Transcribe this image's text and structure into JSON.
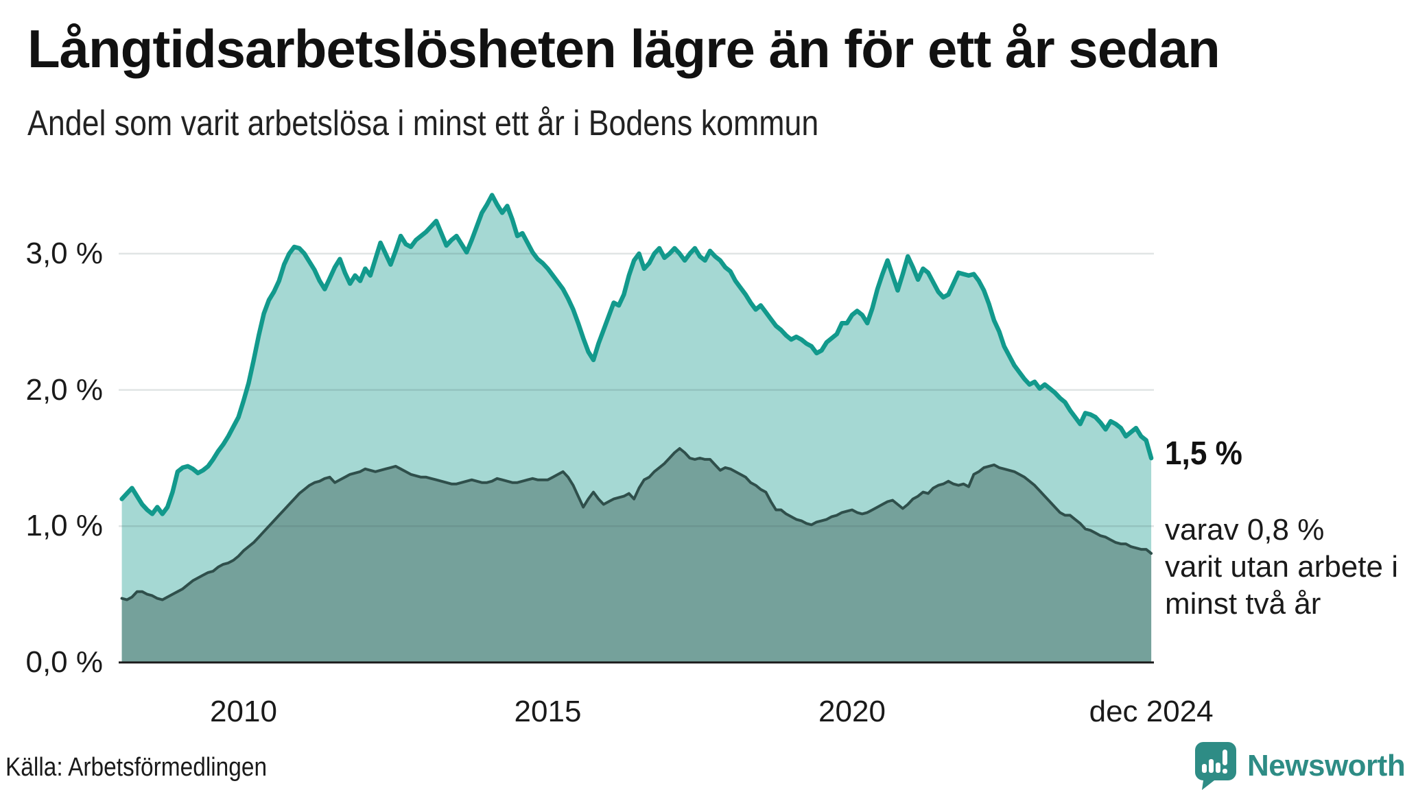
{
  "title": "Långtidsarbetslösheten lägre än för ett år sedan",
  "subtitle": "Andel som varit arbetslösa i minst ett år i Bodens kommun",
  "source": "Källa: Arbetsförmedlingen",
  "brand": {
    "name": "Newsworthy",
    "color": "#2E8C85"
  },
  "annotations": {
    "latest_total": "1,5 %",
    "sub_line1": "varav 0,8 %",
    "sub_line2": "varit utan arbete i",
    "sub_line3": "minst två år"
  },
  "colors": {
    "accent_line": "#12998C",
    "accent_fill": "rgba(18,153,140,0.38)",
    "dark_fill": "#75A19B",
    "dark_line": "#2F4F4B",
    "gridline": "rgba(60,90,90,0.16)",
    "axis": "#1a1a1a",
    "text": "#1a1a1a"
  },
  "chart_data": {
    "type": "area",
    "title": "Långtidsarbetslösheten lägre än för ett år sedan",
    "subtitle": "Andel som varit arbetslösa i minst ett år i Bodens kommun",
    "unit": "percent",
    "x_start_year": 2008.0,
    "x_step_years": 0.0833333,
    "xlim": [
      2008.0,
      2024.917
    ],
    "ylim": [
      0,
      3.55
    ],
    "grid": true,
    "y_ticks": [
      {
        "label": "0,0 %",
        "v": 0
      },
      {
        "label": "1,0 %",
        "v": 1
      },
      {
        "label": "2,0 %",
        "v": 2
      },
      {
        "label": "3,0 %",
        "v": 3
      }
    ],
    "x_ticks": [
      {
        "label": "2010",
        "t": 2010.0
      },
      {
        "label": "2015",
        "t": 2015.0
      },
      {
        "label": "2020",
        "t": 2020.0
      },
      {
        "label": "dec 2024",
        "t": 2024.917
      }
    ],
    "series": [
      {
        "name": "Arbetslösa minst ett år",
        "end_label": "1,5 %",
        "values": [
          1.2,
          1.24,
          1.28,
          1.22,
          1.16,
          1.12,
          1.09,
          1.14,
          1.09,
          1.14,
          1.25,
          1.4,
          1.43,
          1.44,
          1.42,
          1.39,
          1.41,
          1.44,
          1.49,
          1.55,
          1.6,
          1.66,
          1.73,
          1.8,
          1.92,
          2.05,
          2.22,
          2.4,
          2.56,
          2.66,
          2.72,
          2.8,
          2.92,
          3.0,
          3.05,
          3.04,
          3.0,
          2.94,
          2.88,
          2.8,
          2.74,
          2.82,
          2.9,
          2.96,
          2.86,
          2.78,
          2.84,
          2.8,
          2.89,
          2.84,
          2.96,
          3.08,
          3.0,
          2.92,
          3.02,
          3.13,
          3.07,
          3.05,
          3.1,
          3.13,
          3.16,
          3.2,
          3.24,
          3.15,
          3.06,
          3.1,
          3.13,
          3.07,
          3.01,
          3.1,
          3.2,
          3.3,
          3.36,
          3.43,
          3.36,
          3.3,
          3.35,
          3.25,
          3.13,
          3.15,
          3.08,
          3.01,
          2.96,
          2.93,
          2.89,
          2.84,
          2.79,
          2.74,
          2.67,
          2.59,
          2.49,
          2.38,
          2.28,
          2.22,
          2.34,
          2.44,
          2.54,
          2.64,
          2.62,
          2.7,
          2.84,
          2.95,
          3.0,
          2.89,
          2.93,
          3.0,
          3.04,
          2.97,
          3.0,
          3.04,
          3.0,
          2.95,
          3.0,
          3.04,
          2.98,
          2.95,
          3.02,
          2.98,
          2.95,
          2.9,
          2.87,
          2.8,
          2.75,
          2.7,
          2.64,
          2.59,
          2.62,
          2.57,
          2.52,
          2.47,
          2.44,
          2.4,
          2.37,
          2.39,
          2.37,
          2.34,
          2.32,
          2.27,
          2.29,
          2.35,
          2.38,
          2.41,
          2.49,
          2.49,
          2.55,
          2.58,
          2.55,
          2.49,
          2.6,
          2.74,
          2.85,
          2.95,
          2.84,
          2.73,
          2.85,
          2.98,
          2.9,
          2.81,
          2.89,
          2.86,
          2.79,
          2.72,
          2.68,
          2.7,
          2.78,
          2.86,
          2.85,
          2.84,
          2.85,
          2.8,
          2.73,
          2.63,
          2.51,
          2.43,
          2.32,
          2.25,
          2.18,
          2.13,
          2.08,
          2.04,
          2.06,
          2.01,
          2.04,
          2.01,
          1.98,
          1.94,
          1.91,
          1.85,
          1.8,
          1.75,
          1.83,
          1.82,
          1.8,
          1.76,
          1.71,
          1.77,
          1.75,
          1.72,
          1.66,
          1.69,
          1.72,
          1.66,
          1.63,
          1.5
        ]
      },
      {
        "name": "Varav utan arbete minst två år",
        "end_label": "0,8 %",
        "values": [
          0.47,
          0.46,
          0.48,
          0.52,
          0.52,
          0.5,
          0.49,
          0.47,
          0.46,
          0.48,
          0.5,
          0.52,
          0.54,
          0.57,
          0.6,
          0.62,
          0.64,
          0.66,
          0.67,
          0.7,
          0.72,
          0.73,
          0.75,
          0.78,
          0.82,
          0.85,
          0.88,
          0.92,
          0.96,
          1.0,
          1.04,
          1.08,
          1.12,
          1.16,
          1.2,
          1.24,
          1.27,
          1.3,
          1.32,
          1.33,
          1.35,
          1.36,
          1.32,
          1.34,
          1.36,
          1.38,
          1.39,
          1.4,
          1.42,
          1.41,
          1.4,
          1.41,
          1.42,
          1.43,
          1.44,
          1.42,
          1.4,
          1.38,
          1.37,
          1.36,
          1.36,
          1.35,
          1.34,
          1.33,
          1.32,
          1.31,
          1.31,
          1.32,
          1.33,
          1.34,
          1.33,
          1.32,
          1.32,
          1.33,
          1.35,
          1.34,
          1.33,
          1.32,
          1.32,
          1.33,
          1.34,
          1.35,
          1.34,
          1.34,
          1.34,
          1.36,
          1.38,
          1.4,
          1.36,
          1.3,
          1.22,
          1.14,
          1.2,
          1.25,
          1.2,
          1.16,
          1.18,
          1.2,
          1.21,
          1.22,
          1.24,
          1.2,
          1.28,
          1.34,
          1.36,
          1.4,
          1.43,
          1.46,
          1.5,
          1.54,
          1.57,
          1.54,
          1.5,
          1.49,
          1.5,
          1.49,
          1.49,
          1.45,
          1.41,
          1.43,
          1.42,
          1.4,
          1.38,
          1.36,
          1.32,
          1.3,
          1.27,
          1.25,
          1.18,
          1.12,
          1.12,
          1.09,
          1.07,
          1.05,
          1.04,
          1.02,
          1.01,
          1.03,
          1.04,
          1.05,
          1.07,
          1.08,
          1.1,
          1.11,
          1.12,
          1.1,
          1.09,
          1.1,
          1.12,
          1.14,
          1.16,
          1.18,
          1.19,
          1.16,
          1.13,
          1.16,
          1.2,
          1.22,
          1.25,
          1.24,
          1.28,
          1.3,
          1.31,
          1.33,
          1.31,
          1.3,
          1.31,
          1.29,
          1.38,
          1.4,
          1.43,
          1.44,
          1.45,
          1.43,
          1.42,
          1.41,
          1.4,
          1.38,
          1.36,
          1.33,
          1.3,
          1.26,
          1.22,
          1.18,
          1.14,
          1.1,
          1.08,
          1.08,
          1.05,
          1.02,
          0.98,
          0.97,
          0.95,
          0.93,
          0.92,
          0.9,
          0.88,
          0.87,
          0.87,
          0.85,
          0.84,
          0.83,
          0.83,
          0.8
        ]
      }
    ]
  }
}
